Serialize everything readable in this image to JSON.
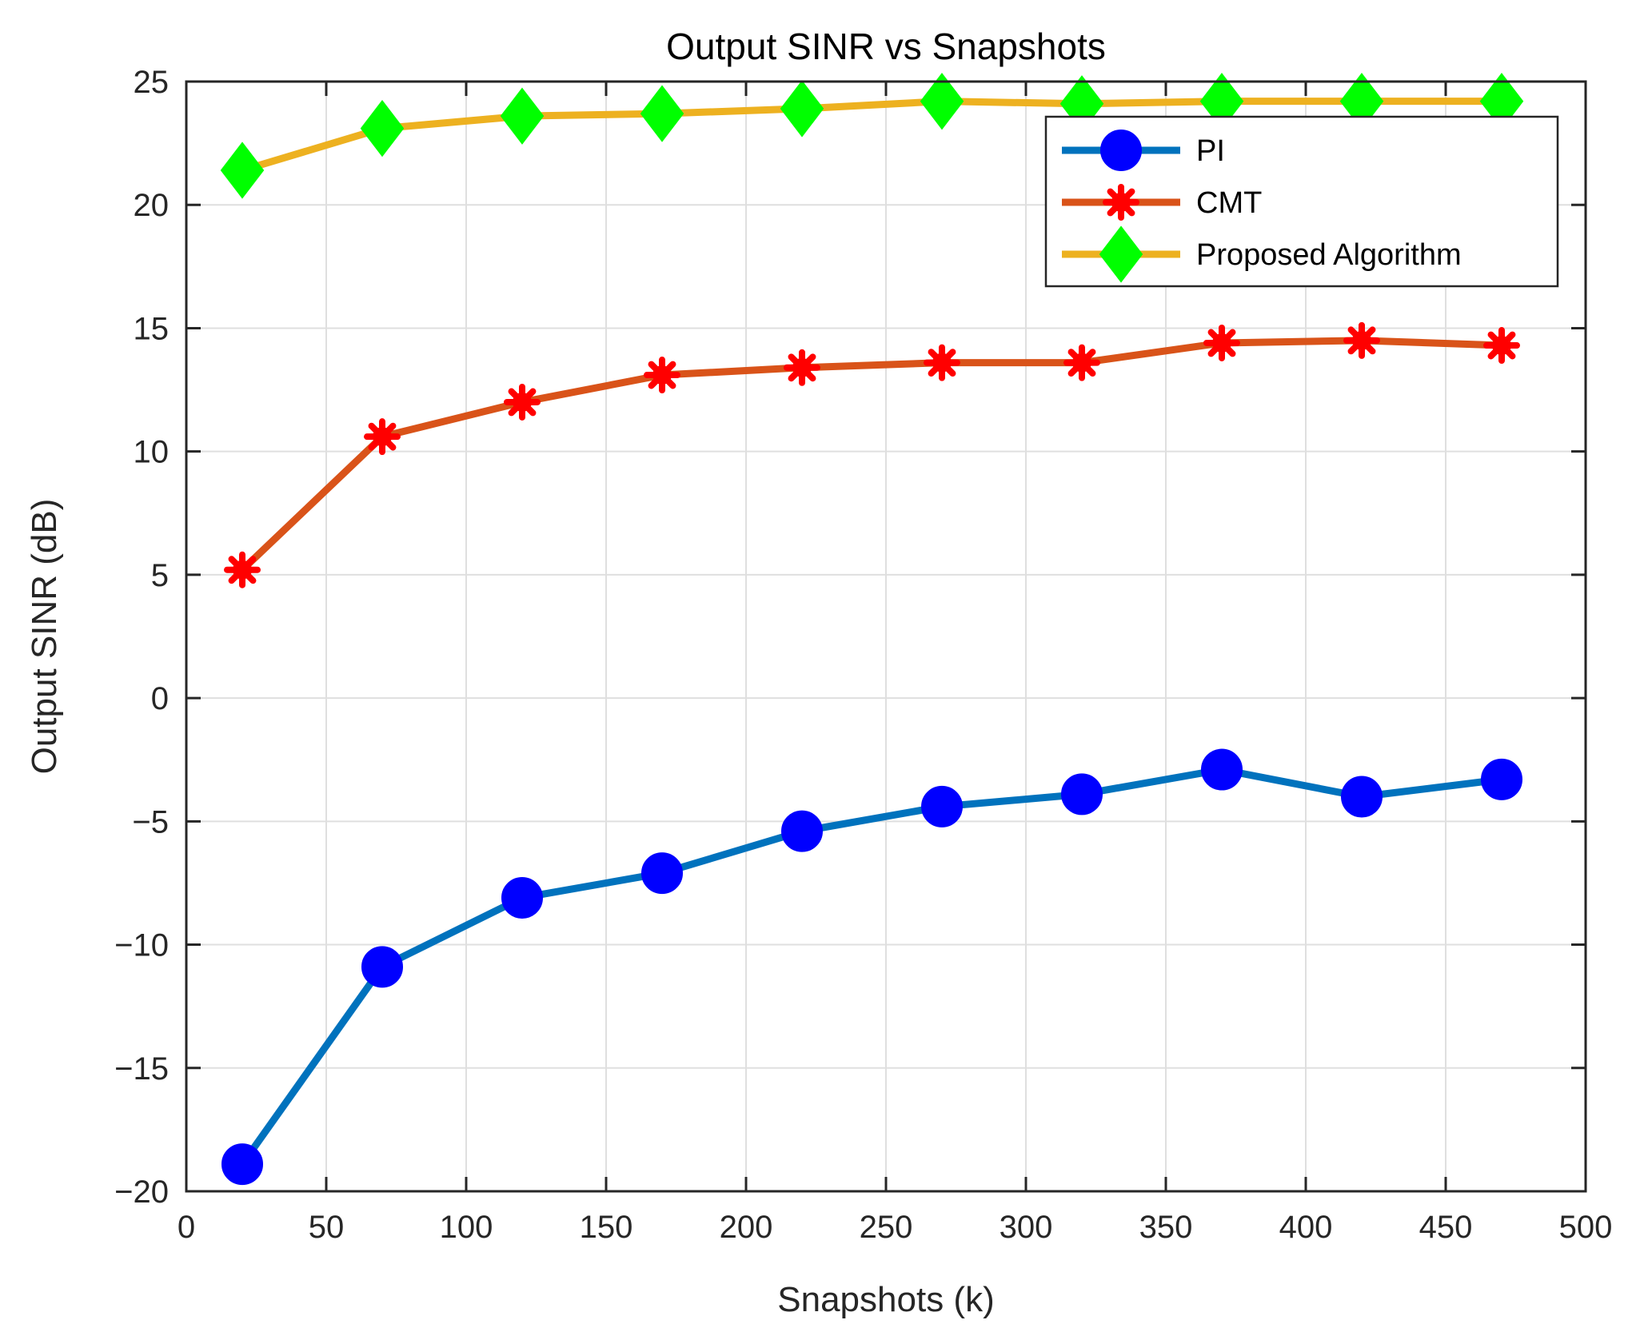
{
  "chart_data": {
    "type": "line",
    "title": "Output SINR vs Snapshots",
    "xlabel": "Snapshots (k)",
    "ylabel": "Output SINR (dB)",
    "xlim": [
      0,
      500
    ],
    "ylim": [
      -20,
      25
    ],
    "xticks": [
      0,
      50,
      100,
      150,
      200,
      250,
      300,
      350,
      400,
      450,
      500
    ],
    "yticks": [
      -20,
      -15,
      -10,
      -5,
      0,
      5,
      10,
      15,
      20,
      25
    ],
    "ytick_labels": [
      "−20",
      "−15",
      "−10",
      "−5",
      "0",
      "5",
      "10",
      "15",
      "20",
      "25"
    ],
    "grid": true,
    "legend_location": "top-right",
    "x": [
      20,
      70,
      120,
      170,
      220,
      270,
      320,
      370,
      420,
      470
    ],
    "series": [
      {
        "name": "PI",
        "marker": "circle",
        "line_color": "#0072BD",
        "marker_color": "#0000FF",
        "values": [
          -18.9,
          -10.9,
          -8.1,
          -7.1,
          -5.4,
          -4.4,
          -3.9,
          -2.9,
          -4.0,
          -3.3
        ]
      },
      {
        "name": "CMT",
        "marker": "asterisk",
        "line_color": "#D95319",
        "marker_color": "#FF0000",
        "values": [
          5.2,
          10.6,
          12.0,
          13.1,
          13.4,
          13.6,
          13.6,
          14.4,
          14.5,
          14.3
        ]
      },
      {
        "name": "Proposed Algorithm",
        "marker": "diamond",
        "line_color": "#EDB120",
        "marker_color": "#00FF00",
        "values": [
          21.4,
          23.1,
          23.6,
          23.7,
          23.9,
          24.2,
          24.1,
          24.2,
          24.2,
          24.2
        ]
      }
    ]
  }
}
